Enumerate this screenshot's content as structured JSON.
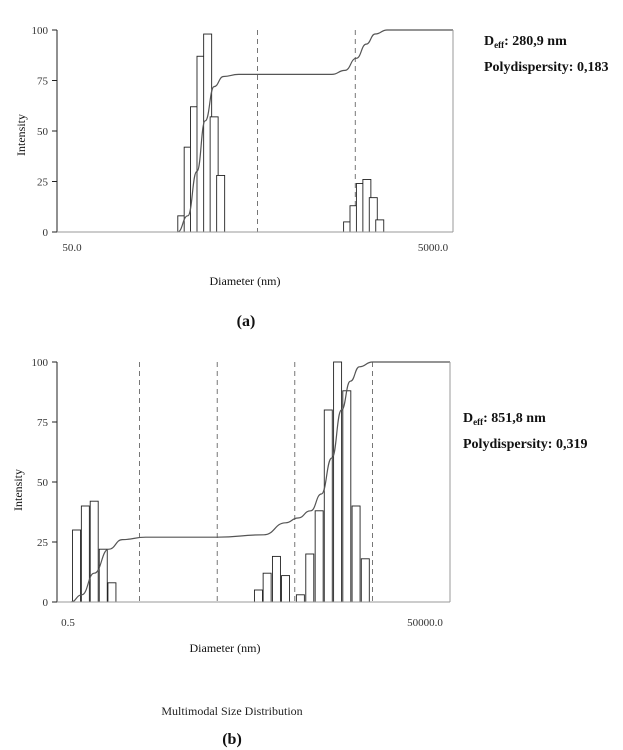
{
  "chart_data": [
    {
      "id": "a",
      "type": "bar",
      "caption": "(a)",
      "xlabel": "Diameter (nm)",
      "ylabel": "Intensity",
      "x_scale": "log",
      "xlim": [
        50.0,
        5000.0
      ],
      "x_tick_labels": [
        "50.0",
        "5000.0"
      ],
      "ylim": [
        0,
        100
      ],
      "y_ticks": [
        0,
        25,
        50,
        75,
        100
      ],
      "grid": "vertical dashed",
      "gridlines_x": [
        500,
        1581
      ],
      "bars": [
        {
          "x": 205,
          "value": 8
        },
        {
          "x": 221,
          "value": 42
        },
        {
          "x": 238,
          "value": 62
        },
        {
          "x": 257,
          "value": 87
        },
        {
          "x": 278,
          "value": 98
        },
        {
          "x": 300,
          "value": 57
        },
        {
          "x": 324,
          "value": 28
        },
        {
          "x": 1445,
          "value": 5
        },
        {
          "x": 1558,
          "value": 13
        },
        {
          "x": 1680,
          "value": 24
        },
        {
          "x": 1813,
          "value": 26
        },
        {
          "x": 1955,
          "value": 17
        },
        {
          "x": 2110,
          "value": 6
        }
      ],
      "cumulative_curve": [
        {
          "x": 195,
          "y": 0
        },
        {
          "x": 220,
          "y": 8
        },
        {
          "x": 245,
          "y": 30
        },
        {
          "x": 270,
          "y": 55
        },
        {
          "x": 300,
          "y": 72
        },
        {
          "x": 335,
          "y": 77
        },
        {
          "x": 400,
          "y": 78
        },
        {
          "x": 800,
          "y": 78
        },
        {
          "x": 1200,
          "y": 78
        },
        {
          "x": 1400,
          "y": 80
        },
        {
          "x": 1600,
          "y": 86
        },
        {
          "x": 1800,
          "y": 93
        },
        {
          "x": 2000,
          "y": 98
        },
        {
          "x": 2300,
          "y": 100
        },
        {
          "x": 5000,
          "y": 100
        }
      ],
      "annotation": {
        "d_main": "D",
        "d_sub": "eff",
        "d_value": ": 280,9 nm",
        "polydispersity": "Polydispersity: 0,183"
      }
    },
    {
      "id": "b",
      "type": "bar",
      "caption": "(b)",
      "xlabel": "Diameter (nm)",
      "ylabel": "Intensity",
      "x_scale": "log",
      "xlim": [
        0.5,
        50000.0
      ],
      "x_tick_labels": [
        "0.5",
        "50000.0"
      ],
      "ylim": [
        0,
        100
      ],
      "y_ticks": [
        0,
        25,
        50,
        75,
        100
      ],
      "grid": "vertical dashed",
      "gridlines_x": [
        5,
        50,
        500,
        5000
      ],
      "bars": [
        {
          "x": 0.77,
          "value": 30
        },
        {
          "x": 1.0,
          "value": 40
        },
        {
          "x": 1.3,
          "value": 42
        },
        {
          "x": 1.7,
          "value": 22
        },
        {
          "x": 2.2,
          "value": 8
        },
        {
          "x": 170,
          "value": 5
        },
        {
          "x": 220,
          "value": 12
        },
        {
          "x": 290,
          "value": 19
        },
        {
          "x": 380,
          "value": 11
        },
        {
          "x": 590,
          "value": 3
        },
        {
          "x": 780,
          "value": 20
        },
        {
          "x": 1030,
          "value": 38
        },
        {
          "x": 1350,
          "value": 80
        },
        {
          "x": 1780,
          "value": 100
        },
        {
          "x": 2340,
          "value": 88
        },
        {
          "x": 3080,
          "value": 40
        },
        {
          "x": 4050,
          "value": 18
        }
      ],
      "cumulative_curve": [
        {
          "x": 0.65,
          "y": 0
        },
        {
          "x": 0.9,
          "y": 3
        },
        {
          "x": 1.3,
          "y": 12
        },
        {
          "x": 2.0,
          "y": 22
        },
        {
          "x": 3.0,
          "y": 26
        },
        {
          "x": 6.0,
          "y": 27
        },
        {
          "x": 50,
          "y": 27
        },
        {
          "x": 200,
          "y": 28
        },
        {
          "x": 380,
          "y": 33
        },
        {
          "x": 550,
          "y": 35
        },
        {
          "x": 800,
          "y": 38
        },
        {
          "x": 1100,
          "y": 45
        },
        {
          "x": 1500,
          "y": 60
        },
        {
          "x": 2000,
          "y": 80
        },
        {
          "x": 2600,
          "y": 92
        },
        {
          "x": 3400,
          "y": 98
        },
        {
          "x": 5000,
          "y": 100
        },
        {
          "x": 50000,
          "y": 100
        }
      ],
      "annotation": {
        "d_main": "D",
        "d_sub": "eff",
        "d_value": ": 851,8 nm",
        "polydispersity": "Polydispersity: 0,319"
      },
      "footnote": "Multimodal Size Distribution"
    }
  ]
}
